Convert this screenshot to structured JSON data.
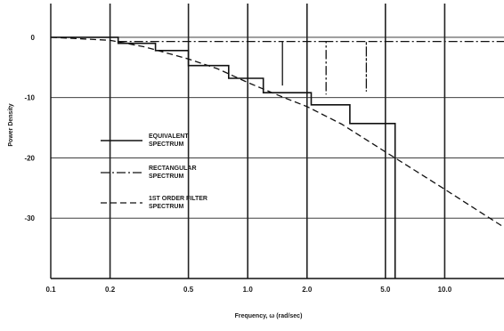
{
  "chart_data": {
    "type": "line",
    "title": "",
    "xlabel": "Frequency, ω (rad/sec)",
    "ylabel": "Power Density",
    "x_scale": "log",
    "xlim": [
      0.1,
      20
    ],
    "ylim": [
      -40,
      5
    ],
    "grid": true,
    "x_ticks": [
      0.1,
      0.2,
      0.5,
      1.0,
      2.0,
      5.0,
      10.0
    ],
    "x_tick_labels": [
      "0.1",
      "0.2",
      "0.5",
      "1.0",
      "2.0",
      "5.0",
      "10.0"
    ],
    "y_ticks": [
      0,
      -10,
      -20,
      -30
    ],
    "y_tick_labels": [
      "0",
      "-10",
      "-20",
      "-30"
    ],
    "legend_placement": "left",
    "series": [
      {
        "name": "EQUIVALENT SPECTRUM",
        "style": "solid",
        "points": [
          [
            0.1,
            0
          ],
          [
            0.22,
            0
          ],
          [
            0.22,
            -1
          ],
          [
            0.34,
            -1
          ],
          [
            0.34,
            -2.2
          ],
          [
            0.5,
            -2.2
          ],
          [
            0.5,
            -4.7
          ],
          [
            0.8,
            -4.7
          ],
          [
            0.8,
            -6.8
          ],
          [
            1.2,
            -6.8
          ],
          [
            1.2,
            -9.2
          ],
          [
            2.1,
            -9.2
          ],
          [
            2.1,
            -11.2
          ],
          [
            3.3,
            -11.2
          ],
          [
            3.3,
            -14.3
          ],
          [
            5.6,
            -14.3
          ],
          [
            5.6,
            -40
          ]
        ]
      },
      {
        "name": "RECTANGULAR SPECTRUM",
        "style": "dashdot",
        "points": [
          [
            0.22,
            -0.7
          ],
          [
            1.5,
            -0.7
          ],
          [
            1.5,
            -8
          ],
          [
            1.5,
            -0.7
          ],
          [
            2.5,
            -0.7
          ],
          [
            2.5,
            -9.5
          ],
          [
            2.5,
            -0.7
          ],
          [
            4.0,
            -0.7
          ],
          [
            4.0,
            -9
          ],
          [
            4.0,
            -0.7
          ],
          [
            20,
            -0.7
          ]
        ]
      },
      {
        "name": "1ST ORDER FILTER SPECTRUM",
        "style": "dashed",
        "points": [
          [
            0.1,
            0
          ],
          [
            0.2,
            -0.5
          ],
          [
            0.3,
            -1.6
          ],
          [
            0.5,
            -3.6
          ],
          [
            0.7,
            -5.2
          ],
          [
            1.0,
            -7.5
          ],
          [
            1.5,
            -9.9
          ],
          [
            2.0,
            -11.5
          ],
          [
            3.0,
            -14.4
          ],
          [
            5.0,
            -19.0
          ],
          [
            7.0,
            -22.0
          ],
          [
            10.0,
            -25.2
          ],
          [
            15.0,
            -28.9
          ],
          [
            20.0,
            -31.5
          ]
        ]
      }
    ]
  }
}
